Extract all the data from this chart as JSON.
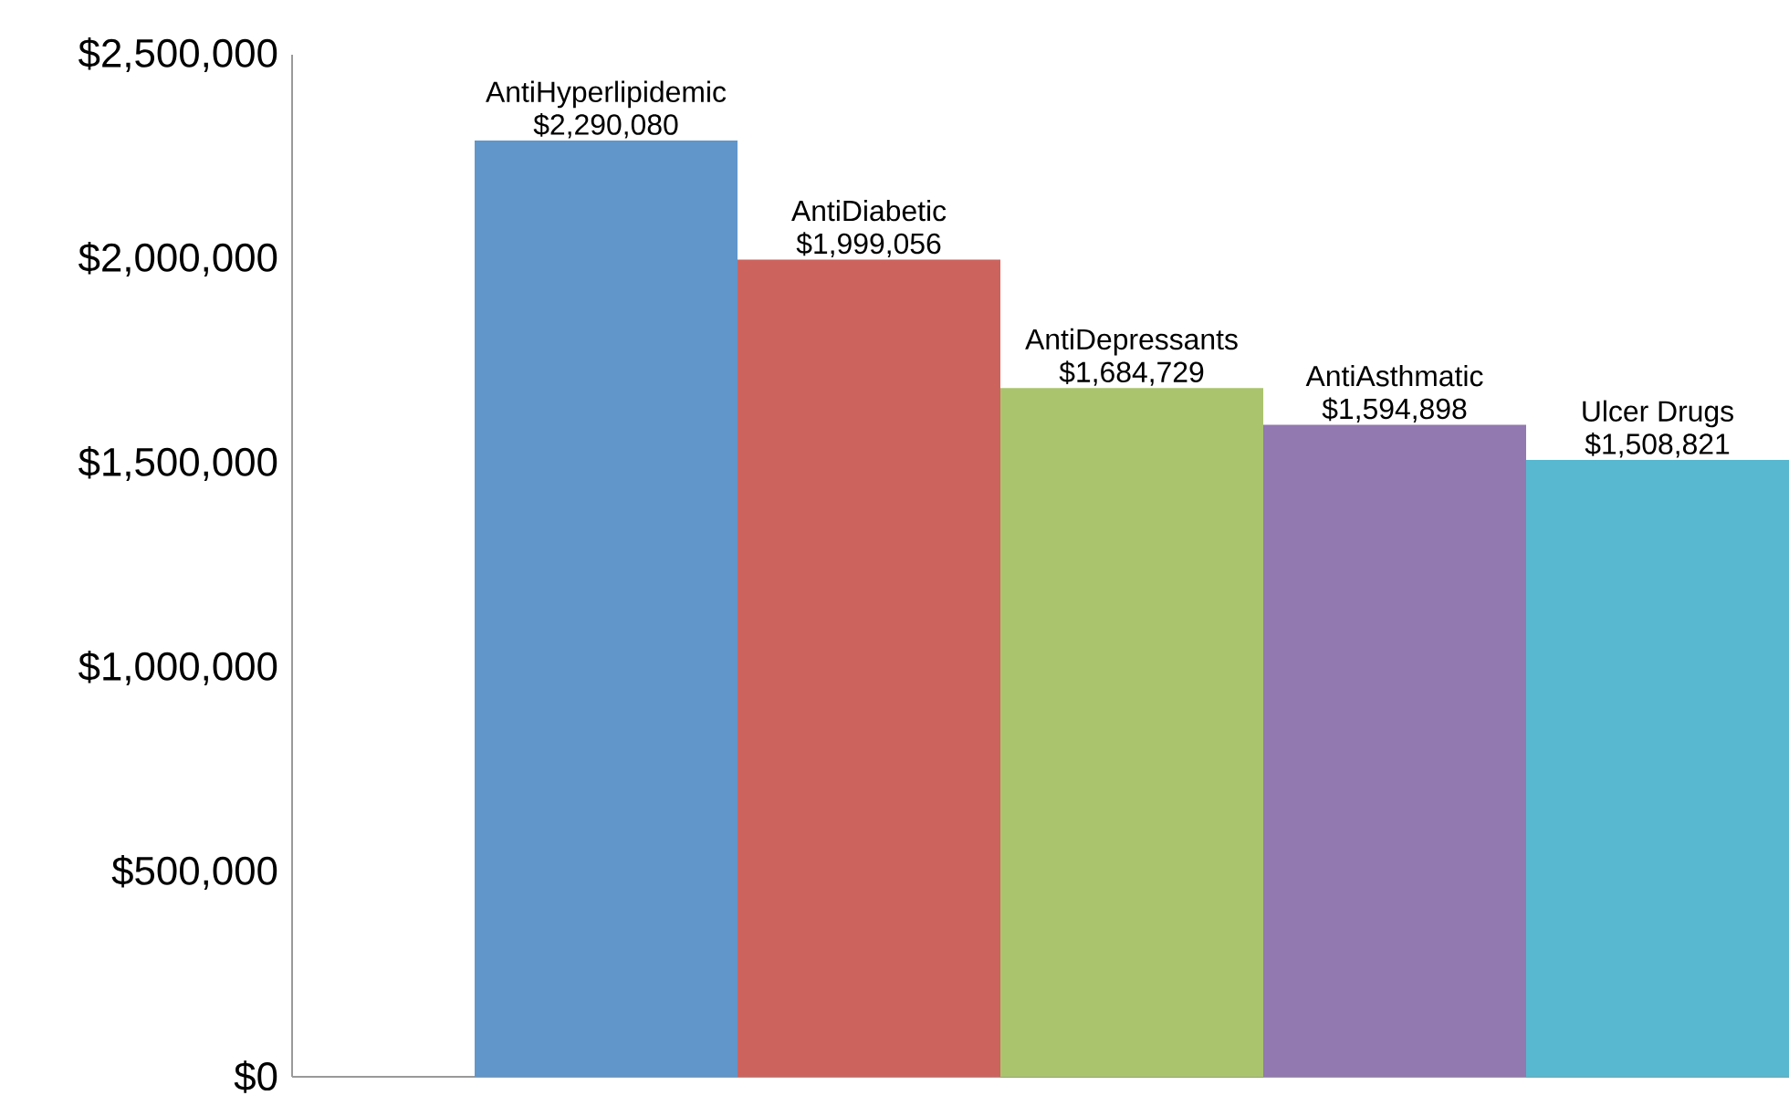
{
  "chart_data": {
    "type": "bar",
    "categories": [
      null
    ],
    "series": [
      {
        "name": "AntiHyperlipidemic",
        "color": "#6096c9",
        "values": [
          2290080
        ],
        "value_labels": [
          "$2,290,080"
        ]
      },
      {
        "name": "AntiDiabetic",
        "color": "#cd635d",
        "values": [
          1999056
        ],
        "value_labels": [
          "$1,999,056"
        ]
      },
      {
        "name": "AntiDepressants",
        "color": "#aac46e",
        "values": [
          1684729
        ],
        "value_labels": [
          "$1,684,729"
        ]
      },
      {
        "name": "AntiAsthmatic",
        "color": "#9279b0",
        "values": [
          1594898
        ],
        "value_labels": [
          "$1,594,898"
        ]
      },
      {
        "name": "Ulcer Drugs",
        "color": "#57b8d0",
        "values": [
          1508821
        ],
        "value_labels": [
          "$1,508,821"
        ]
      }
    ],
    "ylim": [
      0,
      2500000
    ],
    "yticks": [
      {
        "value": 0,
        "label": "$0"
      },
      {
        "value": 500000,
        "label": "$500,000"
      },
      {
        "value": 1000000,
        "label": "$1,000,000"
      },
      {
        "value": 1500000,
        "label": "$1,500,000"
      },
      {
        "value": 2000000,
        "label": "$2,000,000"
      },
      {
        "value": 2500000,
        "label": "$2,500,000"
      }
    ],
    "grid": false,
    "legend": false
  }
}
